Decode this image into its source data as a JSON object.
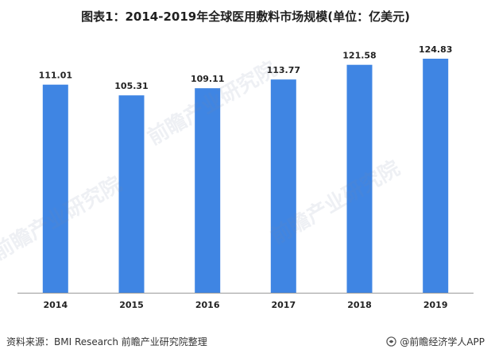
{
  "chart_data": {
    "type": "bar",
    "title": "图表1：2014-2019年全球医用敷料市场规模(单位：亿美元)",
    "categories": [
      "2014",
      "2015",
      "2016",
      "2017",
      "2018",
      "2019"
    ],
    "values": [
      111.01,
      105.31,
      109.11,
      113.77,
      121.58,
      124.83
    ],
    "data_labels": [
      "111.01",
      "105.31",
      "109.11",
      "113.77",
      "121.58",
      "124.83"
    ],
    "xlabel": "",
    "ylabel": "",
    "ylim": [
      0,
      135
    ],
    "grid": false,
    "bar_color": "#3f85e3"
  },
  "footer": {
    "source": "资料来源：BMI Research 前瞻产业研究院整理",
    "brand": "@前瞻经济学人APP"
  },
  "watermark": {
    "text": "前瞻产业研究院"
  }
}
